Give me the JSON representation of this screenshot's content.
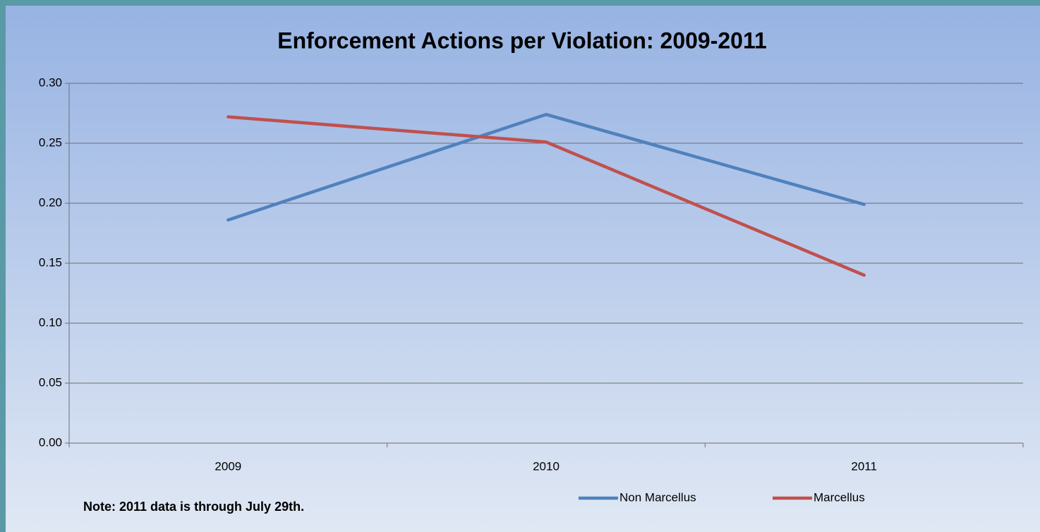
{
  "chart_data": {
    "type": "line",
    "title": "Enforcement Actions per Violation:  2009-2011",
    "categories": [
      "2009",
      "2010",
      "2011"
    ],
    "series": [
      {
        "name": "Non Marcellus",
        "color": "#4f81bd",
        "values": [
          0.186,
          0.274,
          0.199
        ]
      },
      {
        "name": "Marcellus",
        "color": "#c0504d",
        "values": [
          0.272,
          0.251,
          0.14
        ]
      }
    ],
    "ylim": [
      0,
      0.3
    ],
    "yticks": [
      {
        "value": 0,
        "label": "0.00"
      },
      {
        "value": 0.05,
        "label": "0.05"
      },
      {
        "value": 0.1,
        "label": "0.10"
      },
      {
        "value": 0.15,
        "label": "0.15"
      },
      {
        "value": 0.2,
        "label": "0.20"
      },
      {
        "value": 0.25,
        "label": "0.25"
      },
      {
        "value": 0.3,
        "label": "0.30"
      }
    ],
    "grid": true,
    "legend": "bottom",
    "annotations": [
      "Note:  2011 data is through July 29th."
    ]
  }
}
